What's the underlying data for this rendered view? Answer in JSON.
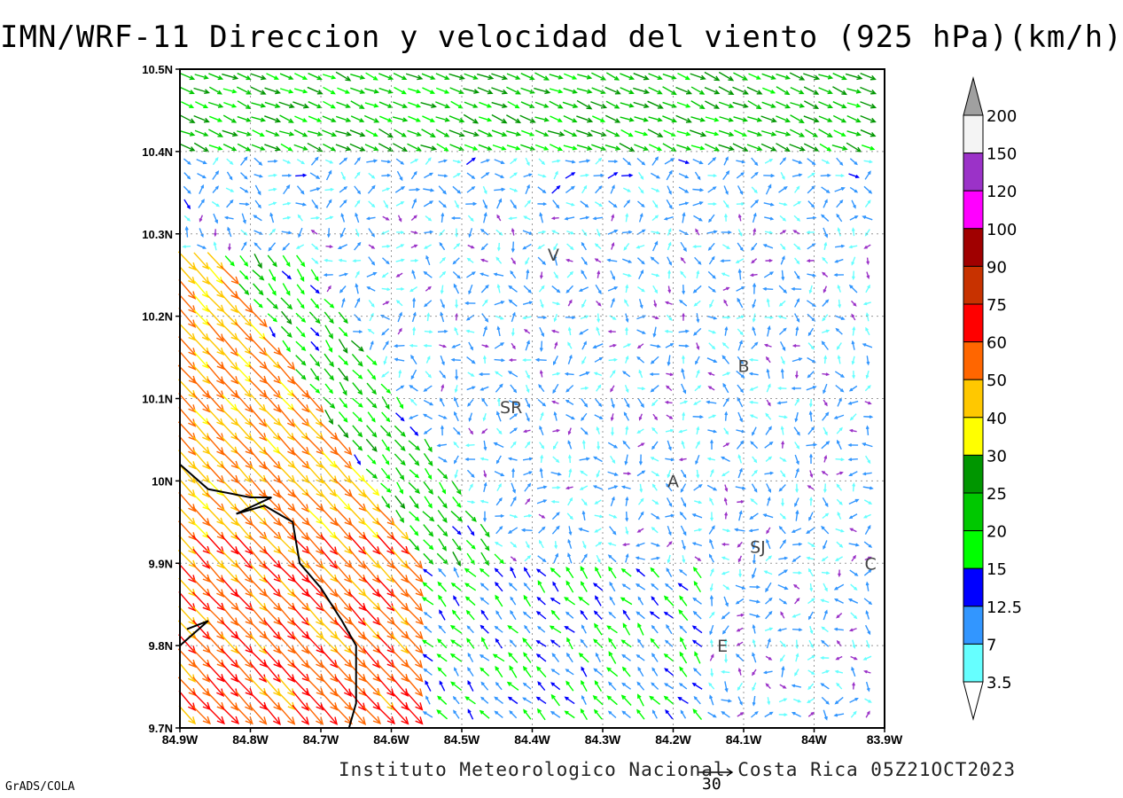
{
  "title": "IMN/WRF-11 Direccion y velocidad del viento (925 hPa)(km/h)",
  "footer": "Instituto Meteorologico Nacional Costa Rica 05Z21OCT2023",
  "credit": "GrADS/COLA",
  "reference_vector": {
    "label": "30",
    "speed": 30
  },
  "axes": {
    "lon_labels": [
      "84.9W",
      "84.8W",
      "84.7W",
      "84.6W",
      "84.5W",
      "84.4W",
      "84.3W",
      "84.2W",
      "84.1W",
      "84W",
      "83.9W"
    ],
    "lat_labels": [
      "10.5N",
      "10.4N",
      "10.3N",
      "10.2N",
      "10.1N",
      "10N",
      "9.9N",
      "9.8N",
      "9.7N"
    ],
    "lon_range": [
      -84.9,
      -83.9
    ],
    "lat_range": [
      9.7,
      10.5
    ]
  },
  "places": [
    {
      "label": "V",
      "lon": -84.37,
      "lat": 10.275
    },
    {
      "label": "SR",
      "lon": -84.43,
      "lat": 10.09
    },
    {
      "label": "B",
      "lon": -84.1,
      "lat": 10.14
    },
    {
      "label": "A",
      "lon": -84.2,
      "lat": 10.0
    },
    {
      "label": "SJ",
      "lon": -84.08,
      "lat": 9.92
    },
    {
      "label": "C",
      "lon": -83.92,
      "lat": 9.9
    },
    {
      "label": "E",
      "lon": -84.13,
      "lat": 9.8
    }
  ],
  "colorbar": {
    "labels": [
      "200",
      "150",
      "120",
      "100",
      "90",
      "75",
      "60",
      "50",
      "40",
      "30",
      "25",
      "20",
      "15",
      "12.5",
      "7",
      "3.5"
    ],
    "colors": [
      "#f4f4f4",
      "#9b32c8",
      "#ff00ff",
      "#a00000",
      "#c83200",
      "#ff0000",
      "#ff6600",
      "#ffc800",
      "#ffff00",
      "#009600",
      "#00c800",
      "#00ff00",
      "#0000ff",
      "#3296ff",
      "#66ffff"
    ],
    "over_color": "#a0a0a0",
    "under_color": "#ffffff"
  },
  "coastline": [
    [
      -84.9,
      10.02
    ],
    [
      -84.86,
      9.99
    ],
    [
      -84.8,
      9.98
    ],
    [
      -84.77,
      9.98
    ],
    [
      -84.82,
      9.96
    ],
    [
      -84.78,
      9.97
    ],
    [
      -84.74,
      9.95
    ],
    [
      -84.73,
      9.9
    ],
    [
      -84.7,
      9.87
    ],
    [
      -84.67,
      9.83
    ],
    [
      -84.65,
      9.8
    ],
    [
      -84.65,
      9.73
    ],
    [
      -84.66,
      9.7
    ]
  ],
  "coastline_island": [
    [
      -84.9,
      9.8
    ],
    [
      -84.86,
      9.83
    ],
    [
      -84.89,
      9.82
    ]
  ]
}
